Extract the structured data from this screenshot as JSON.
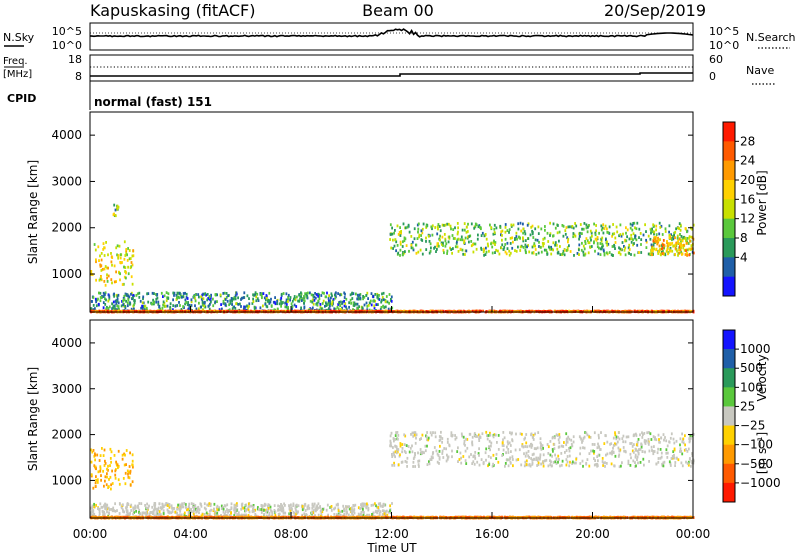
{
  "header": {
    "station": "Kapuskasing (fitACF)",
    "beam": "Beam 00",
    "date": "20/Sep/2019"
  },
  "noise_panel": {
    "left_label": "N.Sky",
    "left_ticks": [
      "10^5",
      "10^0"
    ],
    "right_label": "N.Search",
    "right_ticks": [
      "10^5",
      "10^0"
    ]
  },
  "freq_panel": {
    "left_label_1": "Freq.",
    "left_label_2": "[MHz]",
    "left_ticks": [
      "18",
      "8"
    ],
    "right_label": "Nave",
    "right_ticks": [
      "60",
      "0"
    ]
  },
  "cpid": {
    "label": "CPID",
    "value": "normal (fast) 151"
  },
  "axes": {
    "ylabel": "Slant Range [km]",
    "yticks": [
      "4000",
      "3000",
      "2000",
      "1000"
    ],
    "xlabel": "Time UT",
    "xticks": [
      "00:00",
      "04:00",
      "08:00",
      "12:00",
      "16:00",
      "20:00",
      "00:00"
    ]
  },
  "power_colorbar": {
    "label": "Power [dB]",
    "ticks": [
      "28",
      "24",
      "20",
      "16",
      "12",
      "8",
      "4"
    ],
    "colors": [
      "#ff1a00",
      "#ff5a00",
      "#ff9a00",
      "#ffd100",
      "#c8e000",
      "#5ac83c",
      "#2a9a5a",
      "#1f5fa8",
      "#1414ff"
    ]
  },
  "velocity_colorbar": {
    "label": "Velocity",
    "unit": "[m s⁻¹]",
    "ticks": [
      "1000",
      "500",
      "100",
      "25",
      "−25",
      "−100",
      "−500",
      "−1000"
    ],
    "colors": [
      "#1414ff",
      "#1f5fa8",
      "#2a9a5a",
      "#5ac83c",
      "#c8c8c0",
      "#ffd100",
      "#ff9a00",
      "#ff5a00",
      "#ff1a00"
    ]
  },
  "chart_data": {
    "type": "heatmap",
    "x_range_hours": [
      0,
      24
    ],
    "y_range_km": [
      180,
      4500
    ],
    "panels": [
      {
        "name": "Power",
        "unit": "dB",
        "regions": [
          {
            "t": [
              0.0,
              1.7
            ],
            "r": [
              750,
              1700
            ],
            "value": 18
          },
          {
            "t": [
              0.9,
              1.1
            ],
            "r": [
              2250,
              2550
            ],
            "value": 12
          },
          {
            "t": [
              0.0,
              12.0
            ],
            "r": [
              200,
              600
            ],
            "value": 8
          },
          {
            "t": [
              11.9,
              24.0
            ],
            "r": [
              1400,
              2100
            ],
            "value": 12
          },
          {
            "t": [
              22.3,
              24.0
            ],
            "r": [
              1400,
              1800
            ],
            "value": 20
          },
          {
            "t": [
              0.0,
              24.0
            ],
            "r": [
              180,
              200
            ],
            "value": 28
          }
        ]
      },
      {
        "name": "Velocity",
        "unit": "m/s",
        "regions": [
          {
            "t": [
              0.0,
              1.7
            ],
            "r": [
              800,
              1700
            ],
            "value": -100
          },
          {
            "t": [
              0.0,
              12.0
            ],
            "r": [
              200,
              500
            ],
            "value": 0
          },
          {
            "t": [
              11.9,
              24.0
            ],
            "r": [
              1300,
              2050
            ],
            "value": 0
          },
          {
            "t": [
              0.0,
              24.0
            ],
            "r": [
              180,
              200
            ],
            "value": -500
          }
        ]
      }
    ]
  }
}
